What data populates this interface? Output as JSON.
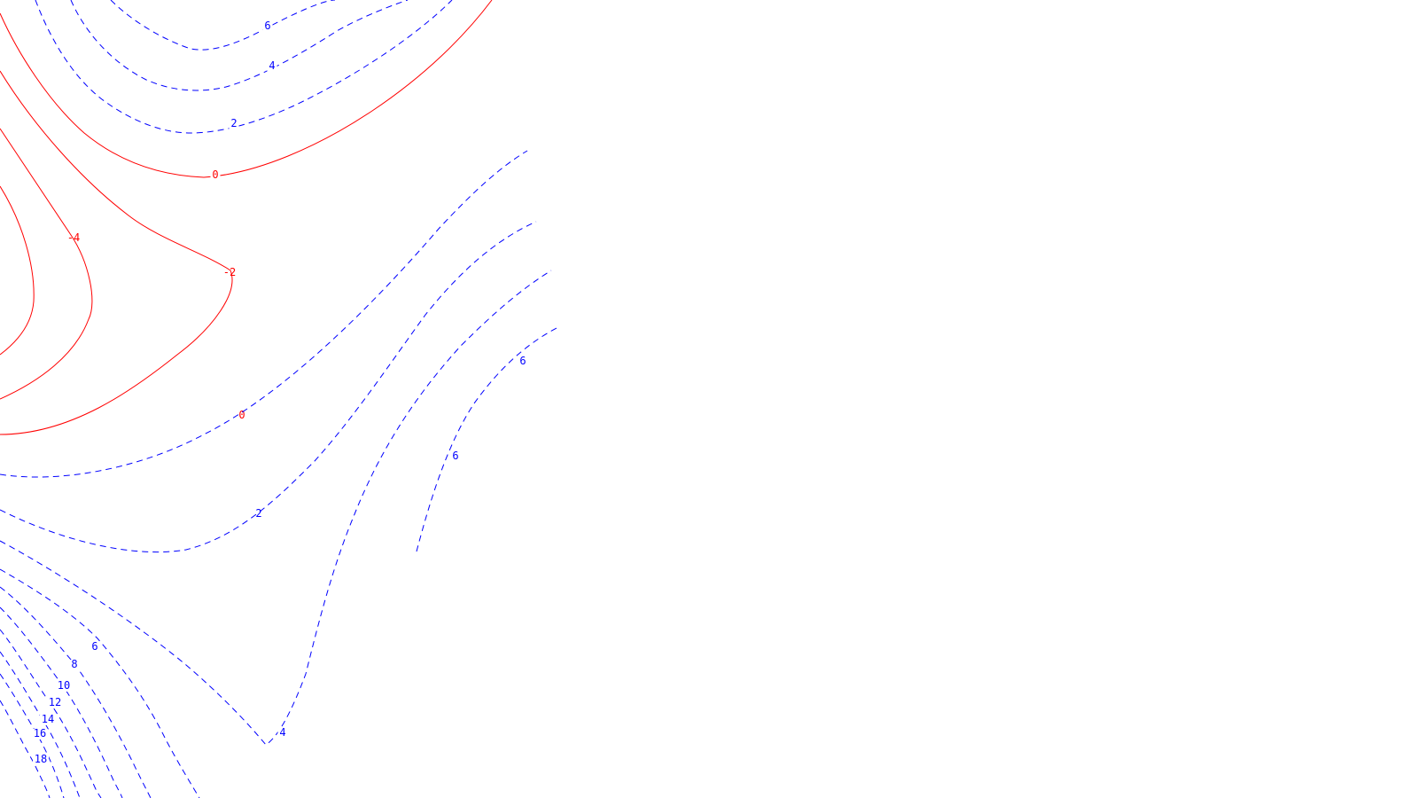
{
  "chart_data": {
    "type": "contour",
    "title": "",
    "xlabel": "",
    "ylabel": "",
    "colors": {
      "positive": "#0000ff",
      "non_positive": "#ff0000"
    },
    "styles": {
      "positive": "dashed",
      "non_positive": "solid"
    },
    "levels_shown": [
      -4,
      -2,
      0,
      2,
      4,
      6,
      8,
      10,
      12,
      14,
      16,
      18
    ],
    "contours": [
      {
        "level": 6,
        "label": "6",
        "style": "dashed",
        "color": "#0000ff"
      },
      {
        "level": 4,
        "label": "4",
        "style": "dashed",
        "color": "#0000ff"
      },
      {
        "level": 2,
        "label": "2",
        "style": "dashed",
        "color": "#0000ff"
      },
      {
        "level": 0,
        "label": "0",
        "style": "solid",
        "color": "#ff0000"
      },
      {
        "level": -4,
        "label": "-4",
        "style": "solid",
        "color": "#ff0000"
      },
      {
        "level": -2,
        "label": "-2",
        "style": "solid",
        "color": "#ff0000"
      },
      {
        "level": 0,
        "label": "0",
        "style": "solid",
        "color": "#ff0000"
      },
      {
        "level": 2,
        "label": "2",
        "style": "dashed",
        "color": "#0000ff"
      },
      {
        "level": 6,
        "label": "6",
        "style": "dashed",
        "color": "#0000ff"
      },
      {
        "level": 6,
        "label": "6",
        "style": "dashed",
        "color": "#0000ff"
      },
      {
        "level": 4,
        "label": "4",
        "style": "dashed",
        "color": "#0000ff"
      },
      {
        "level": 6,
        "label": "6",
        "style": "dashed",
        "color": "#0000ff"
      },
      {
        "level": 8,
        "label": "8",
        "style": "dashed",
        "color": "#0000ff"
      },
      {
        "level": 10,
        "label": "10",
        "style": "dashed",
        "color": "#0000ff"
      },
      {
        "level": 12,
        "label": "12",
        "style": "dashed",
        "color": "#0000ff"
      },
      {
        "level": 14,
        "label": "14",
        "style": "dashed",
        "color": "#0000ff"
      },
      {
        "level": 16,
        "label": "16",
        "style": "dashed",
        "color": "#0000ff"
      },
      {
        "level": 18,
        "label": "18",
        "style": "dashed",
        "color": "#0000ff"
      }
    ]
  }
}
